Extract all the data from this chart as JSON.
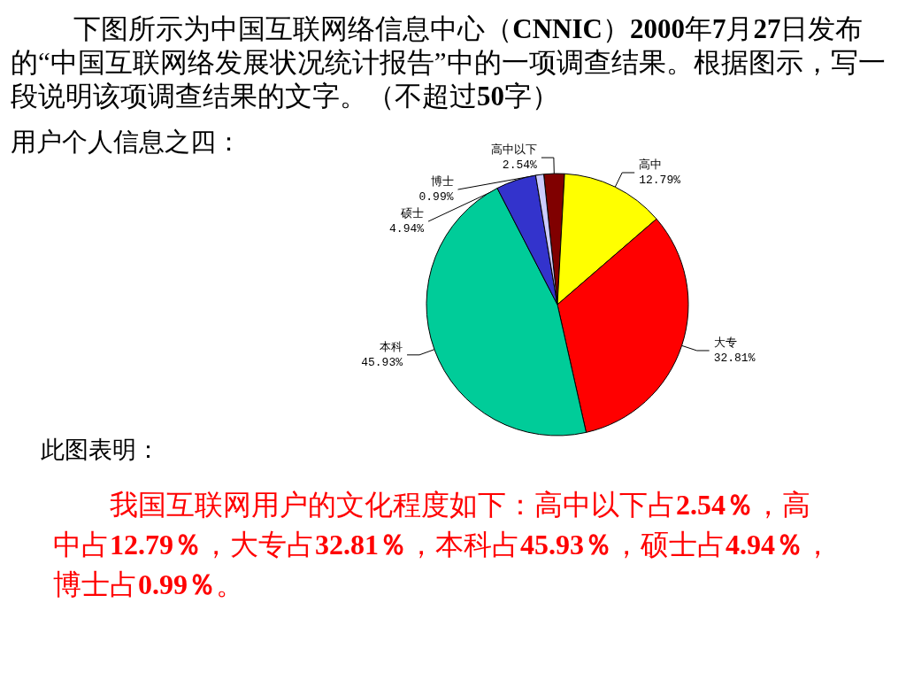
{
  "chart_data": {
    "type": "pie",
    "title": "下图所示为中国互联网络信息中心（CNNIC）2000年7月27日发布的“中国互联网络发展状况统计报告”中的一项调查结果。根据图示，写一段说明该项调查结果的文字。（不超过50字）",
    "subtitle": "用户个人信息之四：",
    "categories": [
      "高中以下",
      "高中",
      "大专",
      "本科",
      "硕士",
      "博士"
    ],
    "values": [
      2.54,
      12.79,
      32.81,
      45.93,
      4.94,
      0.99
    ],
    "value_labels": [
      "2.54%",
      "12.79%",
      "32.81%",
      "45.93%",
      "4.94%",
      "0.99%"
    ],
    "colors": [
      "#800000",
      "#ffff00",
      "#ff0000",
      "#00cc99",
      "#3333cc",
      "#ccccff"
    ],
    "annotations": [
      "此图表明：",
      "我国互联网用户的文化程度如下：高中以下占2.54％，高中占12.79％，大专占32.81％，本科占45.93％，硕士占4.94％，博士占0.99％。"
    ]
  }
}
